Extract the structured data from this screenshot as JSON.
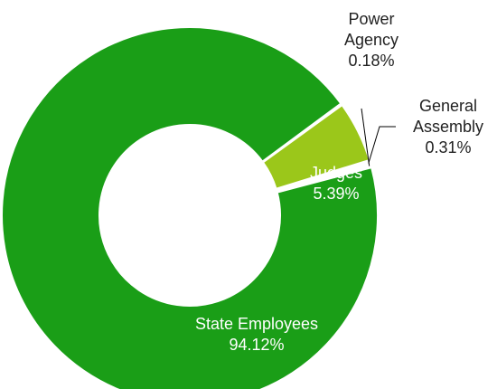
{
  "chart_data": {
    "type": "pie",
    "donut": true,
    "series": [
      {
        "name": "State Employees",
        "value": 94.12,
        "label": "94.12%",
        "color": "#1a9e17"
      },
      {
        "name": "Judges",
        "value": 5.39,
        "label": "5.39%",
        "color": "#9bc71a"
      },
      {
        "name": "General Assembly",
        "value": 0.31,
        "label": "0.31%",
        "color": "#1a9e17"
      },
      {
        "name": "Power Agency",
        "value": 0.18,
        "label": "0.18%",
        "color": "#1a9e17"
      }
    ],
    "label_lines": {
      "State Employees": [
        "State Employees",
        "94.12%"
      ],
      "Judges": [
        "Judges",
        "5.39%"
      ],
      "General Assembly": [
        "General",
        "Assembly",
        "0.31%"
      ],
      "Power Agency": [
        "Power",
        "Agency",
        "0.18%"
      ]
    }
  }
}
